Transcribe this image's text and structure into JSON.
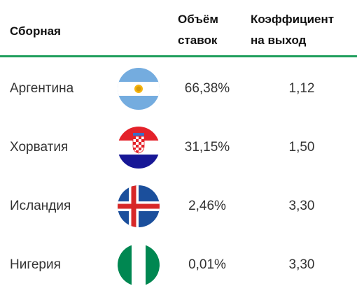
{
  "table": {
    "header": [
      [
        "Сборная"
      ],
      [
        "Объём",
        "ставок"
      ],
      [
        "Коэффициент",
        "на выход"
      ]
    ],
    "rows": [
      [
        "Аргентина",
        "66,38%",
        "1,12"
      ],
      [
        "Хорватия",
        "31,15%",
        "1,50"
      ],
      [
        "Исландия",
        "2,46%",
        "3,30"
      ],
      [
        "Нигерия",
        "0,01%",
        "3,30"
      ]
    ]
  }
}
